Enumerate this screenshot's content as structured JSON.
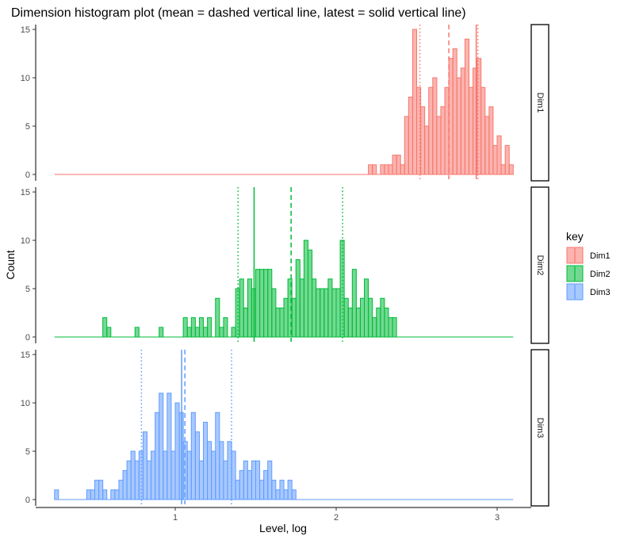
{
  "chart_data": {
    "type": "bar",
    "subtype": "faceted-histogram",
    "title": "Dimension histogram plot (mean = dashed vertical line, latest = solid vertical line)",
    "xlabel": "Level, log",
    "ylabel": "Count",
    "xlim": [
      0.25,
      3.1
    ],
    "ylim": [
      0,
      15.5
    ],
    "x_ticks": [
      1,
      2,
      3
    ],
    "y_ticks": [
      0,
      5,
      10,
      15
    ],
    "bin_width": 0.025,
    "legend": {
      "title": "key",
      "position": "right",
      "entries": [
        "Dim1",
        "Dim2",
        "Dim3"
      ]
    },
    "grid": false,
    "series": [
      {
        "name": "Dim1",
        "fill": "#F8766D",
        "mean": 2.7,
        "latest": 2.87,
        "sd_lines": [
          2.52,
          2.88
        ],
        "bins": [
          [
            2.2,
            1
          ],
          [
            2.225,
            1
          ],
          [
            2.25,
            0
          ],
          [
            2.275,
            1
          ],
          [
            2.3,
            1
          ],
          [
            2.325,
            1
          ],
          [
            2.35,
            2
          ],
          [
            2.375,
            2
          ],
          [
            2.4,
            1
          ],
          [
            2.425,
            6
          ],
          [
            2.45,
            8
          ],
          [
            2.475,
            15
          ],
          [
            2.5,
            9
          ],
          [
            2.525,
            7
          ],
          [
            2.55,
            5
          ],
          [
            2.575,
            9
          ],
          [
            2.6,
            10
          ],
          [
            2.625,
            6
          ],
          [
            2.65,
            7
          ],
          [
            2.675,
            9
          ],
          [
            2.7,
            12
          ],
          [
            2.725,
            13
          ],
          [
            2.75,
            10
          ],
          [
            2.775,
            11
          ],
          [
            2.8,
            14
          ],
          [
            2.825,
            9
          ],
          [
            2.85,
            11
          ],
          [
            2.875,
            12
          ],
          [
            2.9,
            9
          ],
          [
            2.925,
            6
          ],
          [
            2.95,
            7
          ],
          [
            2.975,
            3
          ],
          [
            3.0,
            4
          ],
          [
            3.025,
            1
          ],
          [
            3.05,
            3
          ],
          [
            3.075,
            1
          ]
        ]
      },
      {
        "name": "Dim2",
        "fill": "#00BA38",
        "mean": 1.72,
        "latest": 1.49,
        "sd_lines": [
          1.39,
          2.04
        ],
        "bins": [
          [
            0.55,
            2
          ],
          [
            0.575,
            1
          ],
          [
            0.6,
            0
          ],
          [
            0.625,
            0
          ],
          [
            0.65,
            0
          ],
          [
            0.675,
            0
          ],
          [
            0.7,
            0
          ],
          [
            0.725,
            0
          ],
          [
            0.75,
            1
          ],
          [
            0.775,
            0
          ],
          [
            0.8,
            0
          ],
          [
            0.825,
            0
          ],
          [
            0.85,
            0
          ],
          [
            0.875,
            0
          ],
          [
            0.9,
            1
          ],
          [
            0.925,
            0
          ],
          [
            0.95,
            0
          ],
          [
            0.975,
            0
          ],
          [
            1.0,
            0
          ],
          [
            1.025,
            0
          ],
          [
            1.05,
            2
          ],
          [
            1.075,
            1
          ],
          [
            1.1,
            2
          ],
          [
            1.125,
            1
          ],
          [
            1.15,
            2
          ],
          [
            1.175,
            1
          ],
          [
            1.2,
            2
          ],
          [
            1.225,
            0
          ],
          [
            1.25,
            4
          ],
          [
            1.275,
            1
          ],
          [
            1.3,
            2
          ],
          [
            1.325,
            0
          ],
          [
            1.35,
            1
          ],
          [
            1.375,
            5
          ],
          [
            1.4,
            6
          ],
          [
            1.425,
            3
          ],
          [
            1.45,
            6
          ],
          [
            1.475,
            5
          ],
          [
            1.5,
            7
          ],
          [
            1.525,
            7
          ],
          [
            1.55,
            7
          ],
          [
            1.575,
            7
          ],
          [
            1.6,
            5
          ],
          [
            1.625,
            3
          ],
          [
            1.65,
            3
          ],
          [
            1.675,
            4
          ],
          [
            1.7,
            6
          ],
          [
            1.725,
            4
          ],
          [
            1.75,
            8
          ],
          [
            1.775,
            6
          ],
          [
            1.8,
            10
          ],
          [
            1.825,
            9
          ],
          [
            1.85,
            6
          ],
          [
            1.875,
            5
          ],
          [
            1.9,
            5
          ],
          [
            1.925,
            5
          ],
          [
            1.95,
            6
          ],
          [
            1.975,
            5
          ],
          [
            2.0,
            5
          ],
          [
            2.025,
            10
          ],
          [
            2.05,
            4
          ],
          [
            2.075,
            3
          ],
          [
            2.1,
            7
          ],
          [
            2.125,
            3
          ],
          [
            2.15,
            4
          ],
          [
            2.175,
            6
          ],
          [
            2.2,
            4
          ],
          [
            2.225,
            2
          ],
          [
            2.25,
            3
          ],
          [
            2.275,
            4
          ],
          [
            2.3,
            3
          ],
          [
            2.325,
            2
          ],
          [
            2.35,
            2
          ]
        ]
      },
      {
        "name": "Dim3",
        "fill": "#619CFF",
        "mean": 1.06,
        "latest": 1.04,
        "sd_lines": [
          0.79,
          1.35
        ],
        "bins": [
          [
            0.25,
            1
          ],
          [
            0.275,
            0
          ],
          [
            0.3,
            0
          ],
          [
            0.325,
            0
          ],
          [
            0.35,
            0
          ],
          [
            0.375,
            0
          ],
          [
            0.4,
            0
          ],
          [
            0.425,
            0
          ],
          [
            0.45,
            1
          ],
          [
            0.475,
            1
          ],
          [
            0.5,
            2
          ],
          [
            0.525,
            2
          ],
          [
            0.55,
            1
          ],
          [
            0.575,
            0
          ],
          [
            0.6,
            1
          ],
          [
            0.625,
            1
          ],
          [
            0.65,
            2
          ],
          [
            0.675,
            3
          ],
          [
            0.7,
            4
          ],
          [
            0.725,
            5
          ],
          [
            0.75,
            4
          ],
          [
            0.775,
            5
          ],
          [
            0.8,
            7
          ],
          [
            0.825,
            4
          ],
          [
            0.85,
            5
          ],
          [
            0.875,
            9
          ],
          [
            0.9,
            11
          ],
          [
            0.925,
            5
          ],
          [
            0.95,
            11
          ],
          [
            0.975,
            5
          ],
          [
            1.0,
            10
          ],
          [
            1.025,
            9
          ],
          [
            1.05,
            6
          ],
          [
            1.075,
            5
          ],
          [
            1.1,
            9
          ],
          [
            1.125,
            7
          ],
          [
            1.15,
            4
          ],
          [
            1.175,
            8
          ],
          [
            1.2,
            6
          ],
          [
            1.225,
            5
          ],
          [
            1.25,
            9
          ],
          [
            1.275,
            6
          ],
          [
            1.3,
            4
          ],
          [
            1.325,
            6
          ],
          [
            1.35,
            5
          ],
          [
            1.375,
            2
          ],
          [
            1.4,
            3
          ],
          [
            1.425,
            4
          ],
          [
            1.45,
            3
          ],
          [
            1.475,
            4
          ],
          [
            1.5,
            4
          ],
          [
            1.525,
            2
          ],
          [
            1.55,
            3
          ],
          [
            1.575,
            4
          ],
          [
            1.6,
            2
          ],
          [
            1.625,
            1
          ],
          [
            1.65,
            2
          ],
          [
            1.675,
            1
          ],
          [
            1.7,
            2
          ],
          [
            1.725,
            1
          ]
        ]
      }
    ]
  }
}
